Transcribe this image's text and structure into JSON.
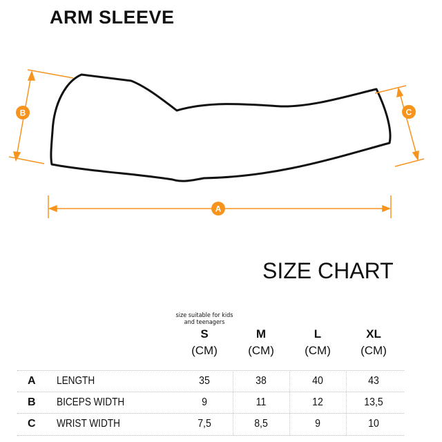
{
  "title": "ARM SLEEVE",
  "diagram": {
    "labels": [
      "A",
      "B",
      "C"
    ],
    "accent": "#F7941D"
  },
  "size_chart": {
    "title": "SIZE CHART",
    "note": "size suitable for kids and teenagers",
    "sizes": [
      {
        "name": "S",
        "unit": "(CM)"
      },
      {
        "name": "M",
        "unit": "(CM)"
      },
      {
        "name": "L",
        "unit": "(CM)"
      },
      {
        "name": "XL",
        "unit": "(CM)"
      }
    ],
    "rows": [
      {
        "letter": "A",
        "label": "LENGTH",
        "values": [
          "35",
          "38",
          "40",
          "43"
        ]
      },
      {
        "letter": "B",
        "label": "BICEPS WIDTH",
        "values": [
          "9",
          "11",
          "12",
          "13,5"
        ]
      },
      {
        "letter": "C",
        "label": "WRIST WIDTH",
        "values": [
          "7,5",
          "8,5",
          "9",
          "10"
        ]
      }
    ]
  }
}
